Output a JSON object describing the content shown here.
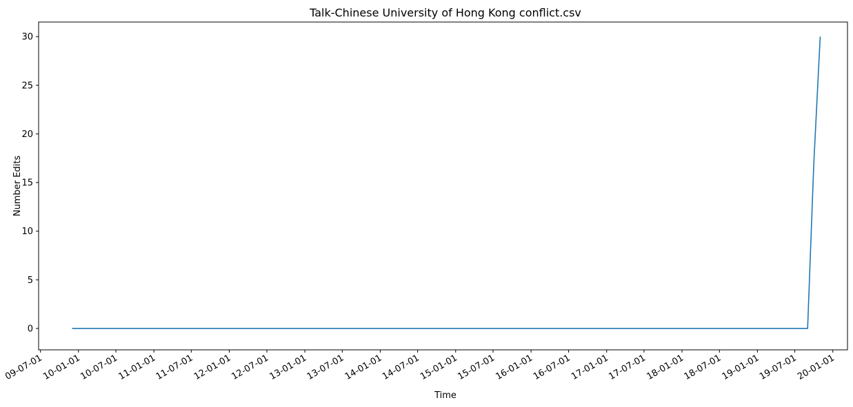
{
  "chart_data": {
    "type": "line",
    "title": "Talk-Chinese University of Hong Kong conflict.csv",
    "xlabel": "Time",
    "ylabel": "Number Edits",
    "ylim": [
      -2.2,
      31.5
    ],
    "xlim": [
      "2009-06-22",
      "2020-03-12"
    ],
    "grid": false,
    "x_ticks": [
      "2009-07-01",
      "2010-01-01",
      "2010-07-01",
      "2011-01-01",
      "2011-07-01",
      "2012-01-01",
      "2012-07-01",
      "2013-01-01",
      "2013-07-01",
      "2014-01-01",
      "2014-07-01",
      "2015-01-01",
      "2015-07-01",
      "2016-01-01",
      "2016-07-01",
      "2017-01-01",
      "2017-07-01",
      "2018-01-01",
      "2018-07-01",
      "2019-01-01",
      "2019-07-01",
      "2020-01-01"
    ],
    "x_tick_labels": [
      "09-07-01",
      "10-01-01",
      "10-07-01",
      "11-01-01",
      "11-07-01",
      "12-01-01",
      "12-07-01",
      "13-01-01",
      "13-07-01",
      "14-01-01",
      "14-07-01",
      "15-01-01",
      "15-07-01",
      "16-01-01",
      "16-07-01",
      "17-01-01",
      "17-07-01",
      "18-01-01",
      "18-07-01",
      "19-01-01",
      "19-07-01",
      "20-01-01"
    ],
    "y_ticks": [
      0,
      5,
      10,
      15,
      20,
      25,
      30
    ],
    "series": [
      {
        "color": "#1f77b4",
        "points": [
          {
            "x": "2009-12-01",
            "y": 0
          },
          {
            "x": "2019-09-01",
            "y": 0
          },
          {
            "x": "2019-10-01",
            "y": 17
          },
          {
            "x": "2019-11-01",
            "y": 30
          }
        ]
      }
    ]
  }
}
